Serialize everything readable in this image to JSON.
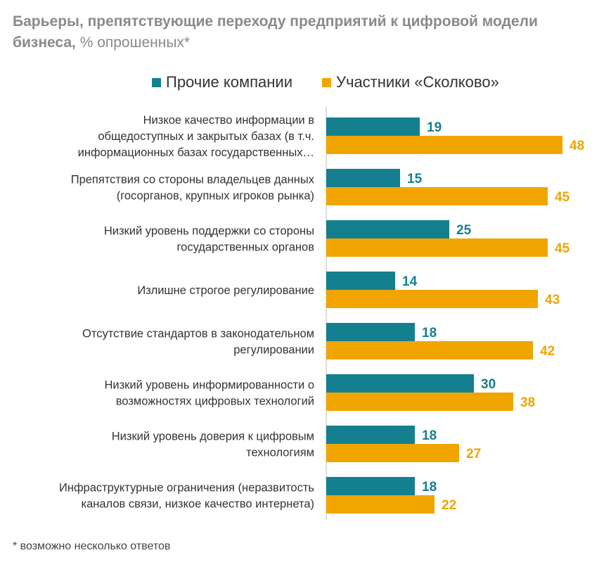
{
  "title": {
    "bold": "Барьеры, препятствующие переходу предприятий к цифровой модели бизнеса,",
    "rest": " % опрошенных*"
  },
  "footnote": "* возможно несколько ответов",
  "colors": {
    "other": "#14808f",
    "skolkovo": "#f0a500",
    "axis": "#bdbdbd"
  },
  "chart_data": {
    "type": "bar",
    "orientation": "horizontal",
    "title": "Барьеры, препятствующие переходу предприятий к цифровой модели бизнеса, % опрошенных*",
    "xlim": [
      0,
      60
    ],
    "legend_position": "top",
    "grid": false,
    "categories": [
      [
        "Низкое качество информации в",
        "общедоступных и закрытых базах (в т.ч.",
        "информационных базах государственных…"
      ],
      [
        "Препятствия со стороны владельцев данных",
        "(госорганов, крупных игроков рынка)"
      ],
      [
        "Низкий уровень поддержки со стороны",
        "государственных органов"
      ],
      [
        "Излишне строгое регулирование"
      ],
      [
        "Отсутствие стандартов в законодательном",
        "регулировании"
      ],
      [
        "Низкий уровень информированности о",
        "возможностях цифровых технологий"
      ],
      [
        "Низкий уровень доверия к цифровым",
        "технологиям"
      ],
      [
        "Инфраструктурные ограничения (неразвитость",
        "каналов связи, низкое качество интернета)"
      ]
    ],
    "series": [
      {
        "name": "Прочие компании",
        "color": "#14808f",
        "values": [
          19,
          15,
          25,
          14,
          18,
          30,
          18,
          18
        ]
      },
      {
        "name": "Участники «Сколково»",
        "color": "#f0a500",
        "values": [
          48,
          45,
          45,
          43,
          42,
          38,
          27,
          22
        ]
      }
    ]
  }
}
